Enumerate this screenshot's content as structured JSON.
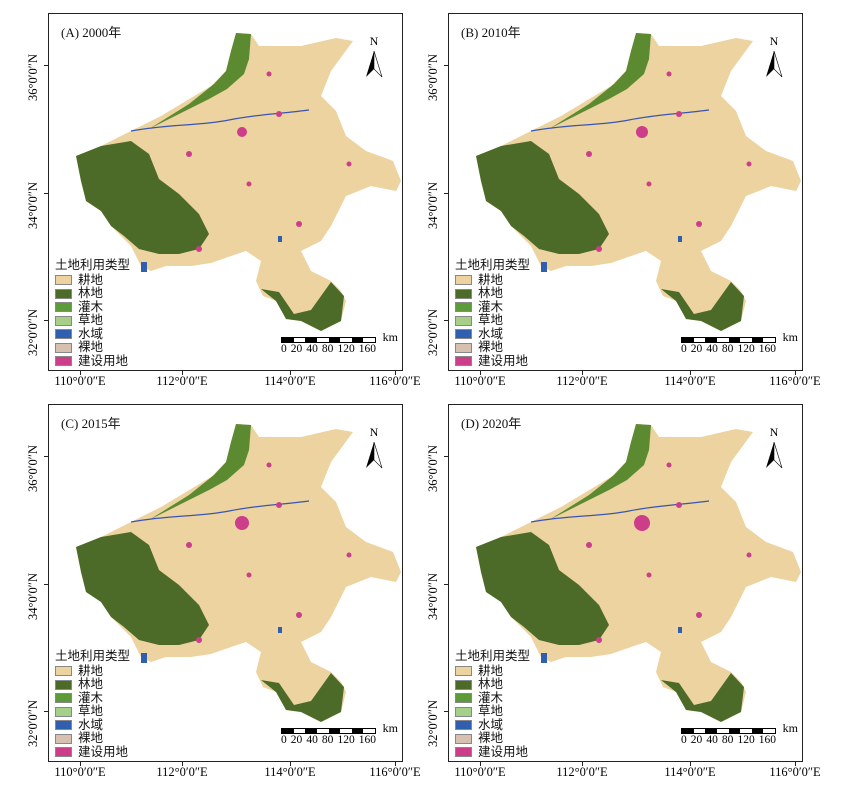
{
  "panels": [
    {
      "label": "(A) 2000年"
    },
    {
      "label": "(B) 2010年"
    },
    {
      "label": "(C) 2015年"
    },
    {
      "label": "(D) 2020年"
    }
  ],
  "north_label": "N",
  "legend": {
    "title": "土地利用类型",
    "items": [
      {
        "label": "耕地",
        "color": "#ecd39f"
      },
      {
        "label": "林地",
        "color": "#4d6b28"
      },
      {
        "label": "灌木",
        "color": "#5c9a3a"
      },
      {
        "label": "草地",
        "color": "#a6d08a"
      },
      {
        "label": "水域",
        "color": "#2f5fae"
      },
      {
        "label": "裸地",
        "color": "#d8c0b0"
      },
      {
        "label": "建设用地",
        "color": "#cc3d8a"
      }
    ]
  },
  "scale": {
    "unit": "km",
    "ticks": [
      "0",
      "20",
      "40",
      "80",
      "120",
      "160"
    ]
  },
  "lat_ticks": [
    "36°0′0″N",
    "34°0′0″N",
    "32°0′0″N"
  ],
  "lon_ticks": [
    "110°0′0″E",
    "112°0′0″E",
    "114°0′0″E",
    "116°0′0″E"
  ]
}
